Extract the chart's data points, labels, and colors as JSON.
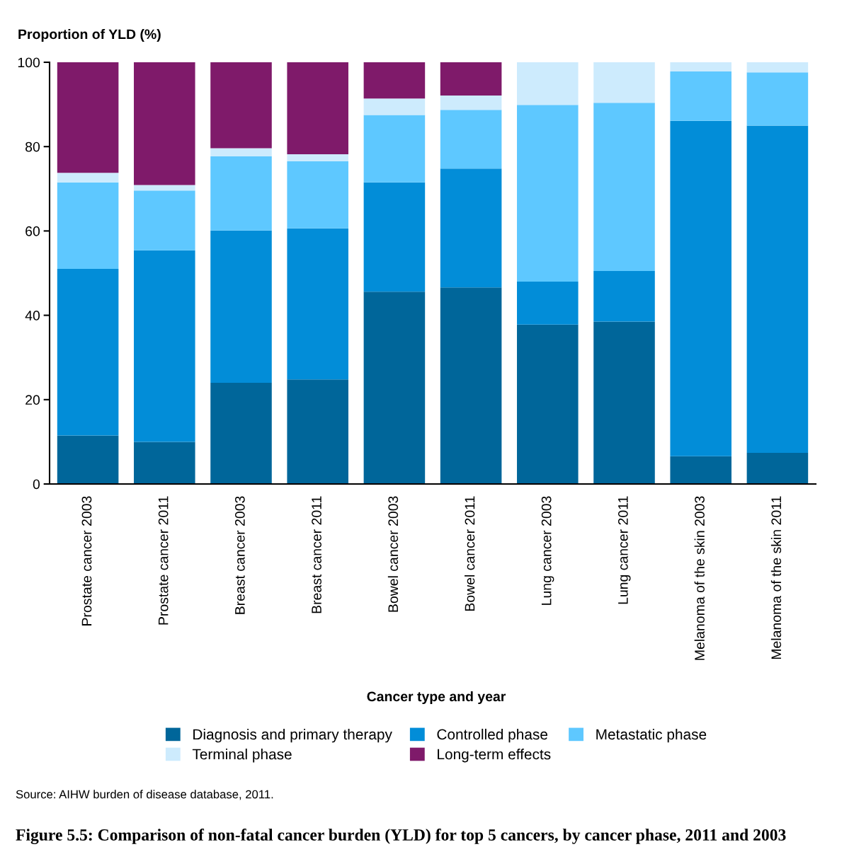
{
  "chart_data": {
    "type": "bar",
    "stacked": true,
    "title": "Figure 5.5: Comparison of non-fatal cancer burden (YLD) for top 5 cancers, by cancer phase, 2011 and 2003",
    "xlabel": "Cancer type and year",
    "ylabel": "Proportion of YLD (%)",
    "categories": [
      "Prostate cancer 2003",
      "Prostate cancer 2011",
      "Breast cancer 2003",
      "Breast cancer 2011",
      "Bowel cancer 2003",
      "Bowel cancer 2011",
      "Lung cancer 2003",
      "Lung cancer 2011",
      "Melanoma of the skin 2003",
      "Melanoma of the skin 2011"
    ],
    "series": [
      {
        "name": "Diagnosis and primary therapy",
        "color": "#00669a",
        "values": [
          11.5,
          10.0,
          24.0,
          24.8,
          45.6,
          46.6,
          37.8,
          38.5,
          6.6,
          7.4
        ]
      },
      {
        "name": "Controlled phase",
        "color": "#028dd8",
        "values": [
          39.5,
          45.4,
          36.1,
          35.8,
          25.9,
          28.2,
          10.2,
          12.0,
          79.5,
          77.6
        ]
      },
      {
        "name": "Metastatic phase",
        "color": "#5ec8ff",
        "values": [
          20.5,
          14.2,
          17.6,
          15.9,
          16.0,
          13.9,
          41.9,
          39.9,
          11.7,
          12.6
        ]
      },
      {
        "name": "Terminal phase",
        "color": "#cdebfd",
        "values": [
          2.3,
          1.3,
          1.9,
          1.7,
          3.9,
          3.4,
          10.1,
          9.6,
          2.2,
          2.4
        ]
      },
      {
        "name": "Long-term effects",
        "color": "#7f1a6a",
        "values": [
          26.2,
          29.1,
          20.4,
          21.8,
          8.6,
          7.9,
          0,
          0,
          0,
          0
        ]
      }
    ],
    "ylim": [
      0,
      100
    ],
    "yticks": [
      0,
      20,
      40,
      60,
      80,
      100
    ],
    "grid": false,
    "legend": "bottom",
    "annotations": [
      "Source: AIHW burden of disease database, 2011."
    ]
  }
}
